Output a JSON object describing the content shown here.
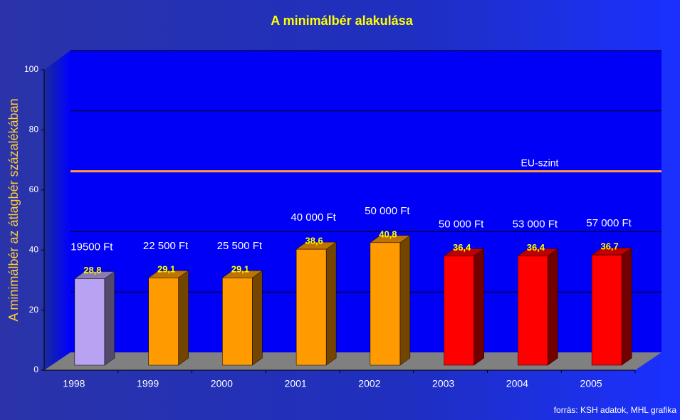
{
  "chart_data": {
    "type": "bar",
    "title": "A minimálbér alakulása",
    "y_label": "A minimálbér az átlagbér százalékában",
    "categories": [
      "1998",
      "1999",
      "2000",
      "2001",
      "2002",
      "2003",
      "2004",
      "2005"
    ],
    "values": [
      28.8,
      29.1,
      29.1,
      38.6,
      40.8,
      36.4,
      36.4,
      36.7
    ],
    "value_labels": [
      "28,8",
      "29,1",
      "29,1",
      "38,6",
      "40,8",
      "36,4",
      "36,4",
      "36,7"
    ],
    "annotations": [
      "19500 Ft",
      "22 500 Ft",
      "25 500 Ft",
      "40 000 Ft",
      "50 000 Ft",
      "50 000 Ft",
      "53 000 Ft",
      "57 000 Ft"
    ],
    "colors": [
      "#b8a2f2",
      "#ff9a00",
      "#ff9a00",
      "#ff9a00",
      "#ff9a00",
      "#ff0000",
      "#ff0000",
      "#ff0000"
    ],
    "ylim": [
      0,
      100
    ],
    "yticks": [
      0,
      20,
      40,
      60,
      80,
      100
    ],
    "grid": true,
    "reference_line": {
      "label": "EU-szint",
      "value": 60,
      "color": "#ff9a40"
    },
    "source": "forrás: KSH adatok, MHL grafika"
  }
}
